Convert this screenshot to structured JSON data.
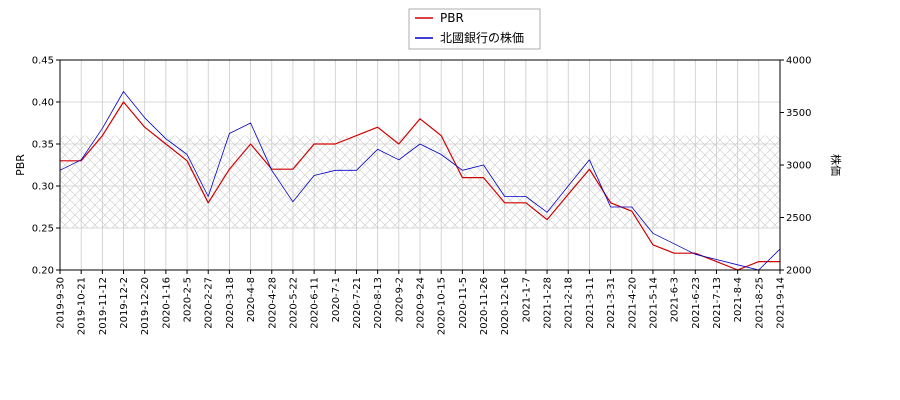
{
  "chart_data": {
    "type": "line",
    "title": "",
    "xlabel": "",
    "ylabel": "PBR",
    "y2label": "株価",
    "ylim": [
      0.2,
      0.45
    ],
    "y2lim": [
      2000,
      4000
    ],
    "yticks": [
      "0.20",
      "0.25",
      "0.30",
      "0.35",
      "0.40",
      "0.45"
    ],
    "y2ticks": [
      "2000",
      "2500",
      "3000",
      "3500",
      "4000"
    ],
    "xticks": [
      "2019-9-30",
      "2019-10-21",
      "2019-11-12",
      "2019-12-2",
      "2019-12-20",
      "2020-1-16",
      "2020-2-5",
      "2020-2-27",
      "2020-3-18",
      "2020-4-8",
      "2020-4-28",
      "2020-5-22",
      "2020-6-11",
      "2020-7-1",
      "2020-7-21",
      "2020-8-13",
      "2020-9-2",
      "2020-9-24",
      "2020-10-15",
      "2020-11-5",
      "2020-11-26",
      "2020-12-16",
      "2021-1-7",
      "2021-1-28",
      "2021-2-18",
      "2021-3-11",
      "2021-3-31",
      "2021-4-20",
      "2021-5-14",
      "2021-6-3",
      "2021-6-23",
      "2021-7-13",
      "2021-8-4",
      "2021-8-25",
      "2021-9-14"
    ],
    "grid": true,
    "legend_position": "top-center",
    "band": {
      "axis": "y",
      "from": 0.25,
      "to": 0.36
    },
    "series": [
      {
        "name": "PBR",
        "axis": "left",
        "color": "#d00000",
        "x": [
          "2019-9-30",
          "2019-10-21",
          "2019-11-12",
          "2019-12-2",
          "2019-12-20",
          "2020-1-16",
          "2020-2-5",
          "2020-2-27",
          "2020-3-18",
          "2020-4-8",
          "2020-4-28",
          "2020-5-22",
          "2020-6-11",
          "2020-7-1",
          "2020-7-21",
          "2020-8-13",
          "2020-9-2",
          "2020-9-24",
          "2020-10-15",
          "2020-11-5",
          "2020-11-26",
          "2020-12-16",
          "2021-1-7",
          "2021-1-28",
          "2021-2-18",
          "2021-3-11",
          "2021-3-31",
          "2021-4-20",
          "2021-5-14",
          "2021-6-3",
          "2021-6-23",
          "2021-7-13",
          "2021-8-4",
          "2021-8-25",
          "2021-9-14"
        ],
        "values": [
          0.33,
          0.33,
          0.36,
          0.4,
          0.37,
          0.35,
          0.33,
          0.28,
          0.32,
          0.35,
          0.32,
          0.32,
          0.35,
          0.35,
          0.36,
          0.37,
          0.35,
          0.38,
          0.36,
          0.31,
          0.31,
          0.28,
          0.28,
          0.26,
          0.29,
          0.32,
          0.28,
          0.27,
          0.23,
          0.22,
          0.22,
          0.21,
          0.2,
          0.21,
          0.21
        ]
      },
      {
        "name": "北國銀行の株価",
        "axis": "right",
        "color": "#0000cc",
        "x": [
          "2019-9-30",
          "2019-10-21",
          "2019-11-12",
          "2019-12-2",
          "2019-12-20",
          "2020-1-16",
          "2020-2-5",
          "2020-2-27",
          "2020-3-18",
          "2020-4-8",
          "2020-4-28",
          "2020-5-22",
          "2020-6-11",
          "2020-7-1",
          "2020-7-21",
          "2020-8-13",
          "2020-9-2",
          "2020-9-24",
          "2020-10-15",
          "2020-11-5",
          "2020-11-26",
          "2020-12-16",
          "2021-1-7",
          "2021-1-28",
          "2021-2-18",
          "2021-3-11",
          "2021-3-31",
          "2021-4-20",
          "2021-5-14",
          "2021-6-3",
          "2021-6-23",
          "2021-7-13",
          "2021-8-4",
          "2021-8-25",
          "2021-9-14"
        ],
        "values": [
          2950,
          3050,
          3350,
          3700,
          3450,
          3250,
          3100,
          2700,
          3300,
          3400,
          2950,
          2650,
          2900,
          2950,
          2950,
          3150,
          3050,
          3200,
          3100,
          2950,
          3000,
          2700,
          2700,
          2550,
          2800,
          3050,
          2600,
          2600,
          2350,
          2250,
          2150,
          2100,
          2050,
          2000,
          2200
        ]
      }
    ]
  }
}
